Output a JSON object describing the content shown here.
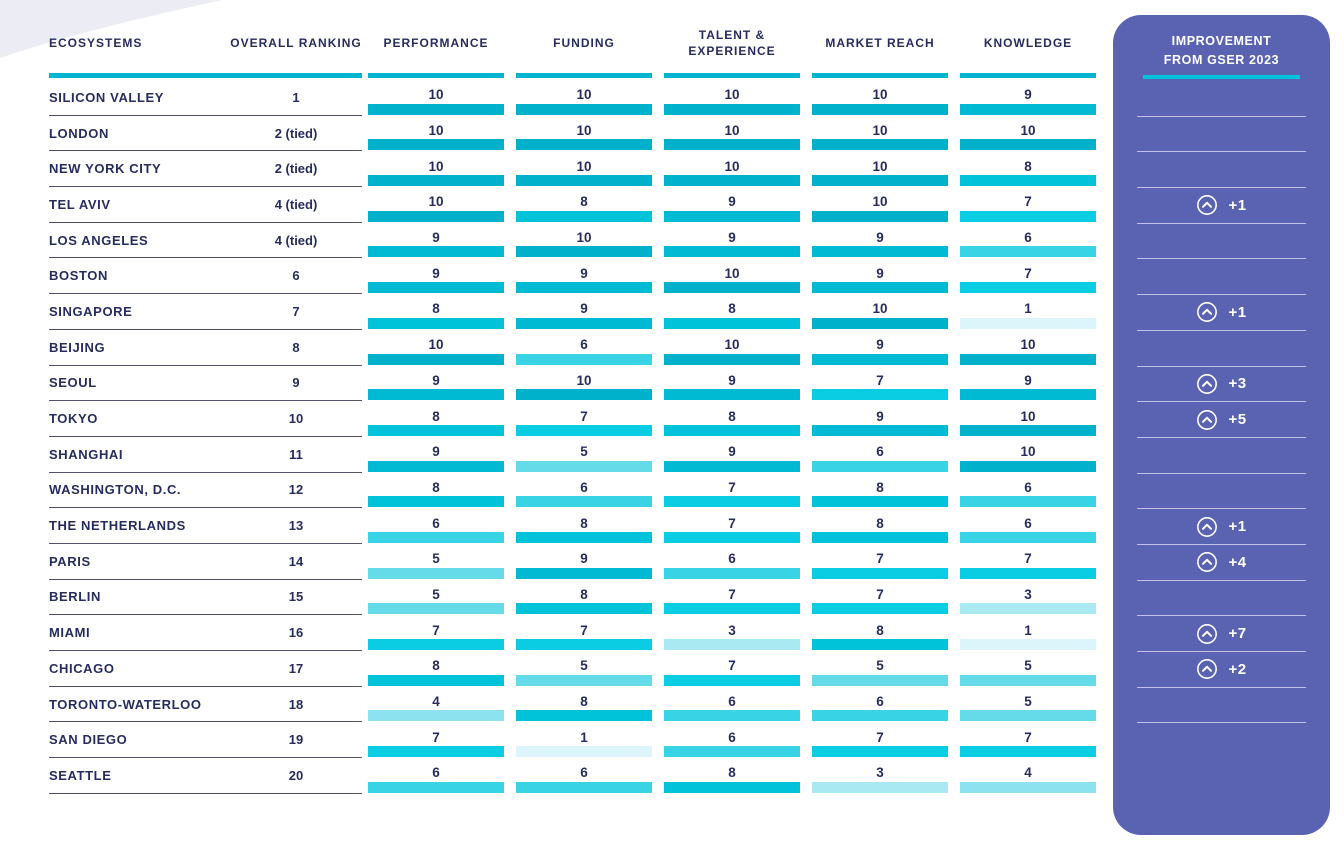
{
  "chart_data": {
    "type": "table",
    "title": "",
    "score_range": [
      1,
      10
    ],
    "columns": [
      "ECOSYSTEMS",
      "OVERALL RANKING",
      "PERFORMANCE",
      "FUNDING",
      "TALENT & EXPERIENCE",
      "MARKET REACH",
      "KNOWLEDGE",
      "IMPROVEMENT FROM GSER 2023"
    ],
    "rows": [
      {
        "ecosystem": "SILICON VALLEY",
        "overall_ranking": "1",
        "performance": 10,
        "funding": 10,
        "talent_experience": 10,
        "market_reach": 10,
        "knowledge": 9,
        "improvement": null,
        "panel_divider": true
      },
      {
        "ecosystem": "LONDON",
        "overall_ranking": "2 (tied)",
        "performance": 10,
        "funding": 10,
        "talent_experience": 10,
        "market_reach": 10,
        "knowledge": 10,
        "improvement": null,
        "panel_divider": true
      },
      {
        "ecosystem": "NEW YORK CITY",
        "overall_ranking": "2 (tied)",
        "performance": 10,
        "funding": 10,
        "talent_experience": 10,
        "market_reach": 10,
        "knowledge": 8,
        "improvement": null,
        "panel_divider": true
      },
      {
        "ecosystem": "TEL AVIV",
        "overall_ranking": "4 (tied)",
        "performance": 10,
        "funding": 8,
        "talent_experience": 9,
        "market_reach": 10,
        "knowledge": 7,
        "improvement": "+1",
        "panel_divider": true
      },
      {
        "ecosystem": "LOS ANGELES",
        "overall_ranking": "4 (tied)",
        "performance": 9,
        "funding": 10,
        "talent_experience": 9,
        "market_reach": 9,
        "knowledge": 6,
        "improvement": null,
        "panel_divider": true
      },
      {
        "ecosystem": "BOSTON",
        "overall_ranking": "6",
        "performance": 9,
        "funding": 9,
        "talent_experience": 10,
        "market_reach": 9,
        "knowledge": 7,
        "improvement": null,
        "panel_divider": true
      },
      {
        "ecosystem": "SINGAPORE",
        "overall_ranking": "7",
        "performance": 8,
        "funding": 9,
        "talent_experience": 8,
        "market_reach": 10,
        "knowledge": 1,
        "improvement": "+1",
        "panel_divider": true
      },
      {
        "ecosystem": "BEIJING",
        "overall_ranking": "8",
        "performance": 10,
        "funding": 6,
        "talent_experience": 10,
        "market_reach": 9,
        "knowledge": 10,
        "improvement": null,
        "panel_divider": true
      },
      {
        "ecosystem": "SEOUL",
        "overall_ranking": "9",
        "performance": 9,
        "funding": 10,
        "talent_experience": 9,
        "market_reach": 7,
        "knowledge": 9,
        "improvement": "+3",
        "panel_divider": true
      },
      {
        "ecosystem": "TOKYO",
        "overall_ranking": "10",
        "performance": 8,
        "funding": 7,
        "talent_experience": 8,
        "market_reach": 9,
        "knowledge": 10,
        "improvement": "+5",
        "panel_divider": true
      },
      {
        "ecosystem": "SHANGHAI",
        "overall_ranking": "11",
        "performance": 9,
        "funding": 5,
        "talent_experience": 9,
        "market_reach": 6,
        "knowledge": 10,
        "improvement": null,
        "panel_divider": true
      },
      {
        "ecosystem": "WASHINGTON, D.C.",
        "overall_ranking": "12",
        "performance": 8,
        "funding": 6,
        "talent_experience": 7,
        "market_reach": 8,
        "knowledge": 6,
        "improvement": null,
        "panel_divider": true
      },
      {
        "ecosystem": "THE NETHERLANDS",
        "overall_ranking": "13",
        "performance": 6,
        "funding": 8,
        "talent_experience": 7,
        "market_reach": 8,
        "knowledge": 6,
        "improvement": "+1",
        "panel_divider": true
      },
      {
        "ecosystem": "PARIS",
        "overall_ranking": "14",
        "performance": 5,
        "funding": 9,
        "talent_experience": 6,
        "market_reach": 7,
        "knowledge": 7,
        "improvement": "+4",
        "panel_divider": true
      },
      {
        "ecosystem": "BERLIN",
        "overall_ranking": "15",
        "performance": 5,
        "funding": 8,
        "talent_experience": 7,
        "market_reach": 7,
        "knowledge": 3,
        "improvement": null,
        "panel_divider": true
      },
      {
        "ecosystem": "MIAMI",
        "overall_ranking": "16",
        "performance": 7,
        "funding": 7,
        "talent_experience": 3,
        "market_reach": 8,
        "knowledge": 1,
        "improvement": "+7",
        "panel_divider": true
      },
      {
        "ecosystem": "CHICAGO",
        "overall_ranking": "17",
        "performance": 8,
        "funding": 5,
        "talent_experience": 7,
        "market_reach": 5,
        "knowledge": 5,
        "improvement": "+2",
        "panel_divider": true
      },
      {
        "ecosystem": "TORONTO-WATERLOO",
        "overall_ranking": "18",
        "performance": 4,
        "funding": 8,
        "talent_experience": 6,
        "market_reach": 6,
        "knowledge": 5,
        "improvement": null,
        "panel_divider": true
      },
      {
        "ecosystem": "SAN DIEGO",
        "overall_ranking": "19",
        "performance": 7,
        "funding": 1,
        "talent_experience": 6,
        "market_reach": 7,
        "knowledge": 7,
        "improvement": null,
        "panel_divider": false
      },
      {
        "ecosystem": "SEATTLE",
        "overall_ranking": "20",
        "performance": 6,
        "funding": 6,
        "talent_experience": 8,
        "market_reach": 3,
        "knowledge": 4,
        "improvement": null,
        "panel_divider": false
      }
    ]
  },
  "icons": {
    "improvement_up": "chevron-up-in-circle"
  },
  "colors": {
    "navy_text": "#272c5f",
    "header_underline_cyan": "#00b5d2",
    "panel_background": "#5a63b1",
    "panel_underline_cyan": "#00c4dc",
    "row_separator": "#50506a",
    "corner_decoration": "#ececf5",
    "score_scale": {
      "1": "#dcf5fa",
      "2": "#c5eff6",
      "3": "#a9e9f2",
      "4": "#8ce3ef",
      "5": "#65dbea",
      "6": "#39d3e6",
      "7": "#0acce2",
      "8": "#00c3da",
      "9": "#00bad3",
      "10": "#00b1cb"
    }
  }
}
